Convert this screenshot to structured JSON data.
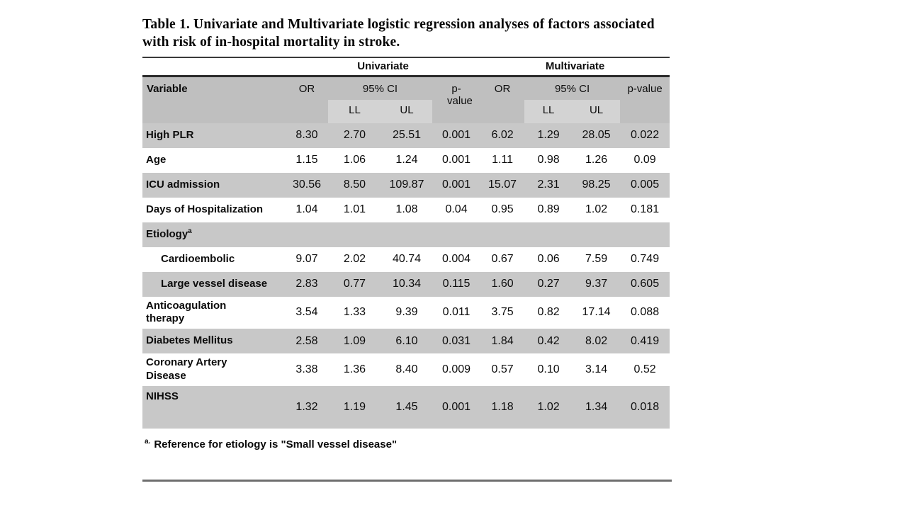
{
  "title": "Table 1. Univariate and Multivariate logistic regression analyses of factors associated with risk of in-hospital mortality in stroke.",
  "table": {
    "group_headers": {
      "univariate": "Univariate",
      "multivariate": "Multivariate"
    },
    "column_headers": {
      "variable": "Variable",
      "or": "OR",
      "ci": "95% CI",
      "p_value": "p-value",
      "ll": "LL",
      "ul": "UL"
    },
    "rows": [
      {
        "label": "High PLR",
        "shaded": true,
        "indent": false,
        "values": [
          "8.30",
          "2.70",
          "25.51",
          "0.001",
          "6.02",
          "1.29",
          "28.05",
          "0.022"
        ]
      },
      {
        "label": "Age",
        "shaded": false,
        "indent": false,
        "values": [
          "1.15",
          "1.06",
          "1.24",
          "0.001",
          "1.11",
          "0.98",
          "1.26",
          "0.09"
        ]
      },
      {
        "label": "ICU admission",
        "shaded": true,
        "indent": false,
        "values": [
          "30.56",
          "8.50",
          "109.87",
          "0.001",
          "15.07",
          "2.31",
          "98.25",
          "0.005"
        ]
      },
      {
        "label": "Days of Hospitalization",
        "shaded": false,
        "indent": false,
        "values": [
          "1.04",
          "1.01",
          "1.08",
          "0.04",
          "0.95",
          "0.89",
          "1.02",
          "0.181"
        ]
      },
      {
        "label": "Etiology",
        "superscript": "a",
        "section": true,
        "shaded": true,
        "indent": false,
        "values": []
      },
      {
        "label": "Cardioembolic",
        "shaded": false,
        "indent": true,
        "values": [
          "9.07",
          "2.02",
          "40.74",
          "0.004",
          "0.67",
          "0.06",
          "7.59",
          "0.749"
        ]
      },
      {
        "label": "Large vessel disease",
        "shaded": true,
        "indent": true,
        "values": [
          "2.83",
          "0.77",
          "10.34",
          "0.115",
          "1.60",
          "0.27",
          "9.37",
          "0.605"
        ]
      },
      {
        "label": "Anticoagulation\ntherapy",
        "shaded": false,
        "indent": false,
        "values": [
          "3.54",
          "1.33",
          "9.39",
          "0.011",
          "3.75",
          "0.82",
          "17.14",
          "0.088"
        ]
      },
      {
        "label": "Diabetes Mellitus",
        "shaded": true,
        "indent": false,
        "values": [
          "2.58",
          "1.09",
          "6.10",
          "0.031",
          "1.84",
          "0.42",
          "8.02",
          "0.419"
        ]
      },
      {
        "label": "Coronary Artery\nDisease",
        "shaded": false,
        "indent": false,
        "values": [
          "3.38",
          "1.36",
          "8.40",
          "0.009",
          "0.57",
          "0.10",
          "3.14",
          "0.52"
        ]
      },
      {
        "label": "NIHSS",
        "tall": true,
        "shaded": true,
        "indent": false,
        "values": [
          "1.32",
          "1.19",
          "1.45",
          "0.001",
          "1.18",
          "1.02",
          "1.34",
          "0.018"
        ]
      }
    ],
    "footnote": {
      "marker": "a.",
      "text": "Reference for etiology is \"Small vessel disease\""
    }
  },
  "colors": {
    "header_bg": "#bfbfbf",
    "subheader_bg": "#d3d3d3",
    "shaded_row_bg": "#c8c8c8",
    "top_rule": "#3a3a3a",
    "mid_rule": "#2b2b2b",
    "bottom_rule": "#6e6e6e"
  }
}
